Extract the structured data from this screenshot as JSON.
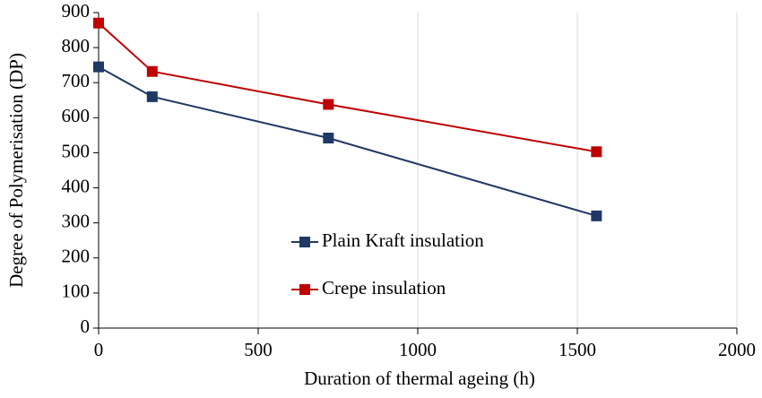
{
  "chart_data": {
    "type": "line",
    "xlabel": "Duration of thermal ageing (h)",
    "ylabel": "Degree of Polymerisation (DP)",
    "x": [
      0,
      168,
      720,
      1560
    ],
    "series": [
      {
        "name": "Plain Kraft insulation",
        "color": "#203864",
        "values": [
          745,
          660,
          542,
          320
        ]
      },
      {
        "name": "Crepe insulation",
        "color": "#c00000",
        "values": [
          870,
          732,
          638,
          503
        ]
      }
    ],
    "xlim": [
      0,
      2000
    ],
    "xticks": [
      0,
      500,
      1000,
      1500,
      2000
    ],
    "ylim": [
      0,
      900
    ],
    "yticks": [
      0,
      100,
      200,
      300,
      400,
      500,
      600,
      700,
      800,
      900
    ],
    "grid": "x",
    "legend": "center"
  }
}
